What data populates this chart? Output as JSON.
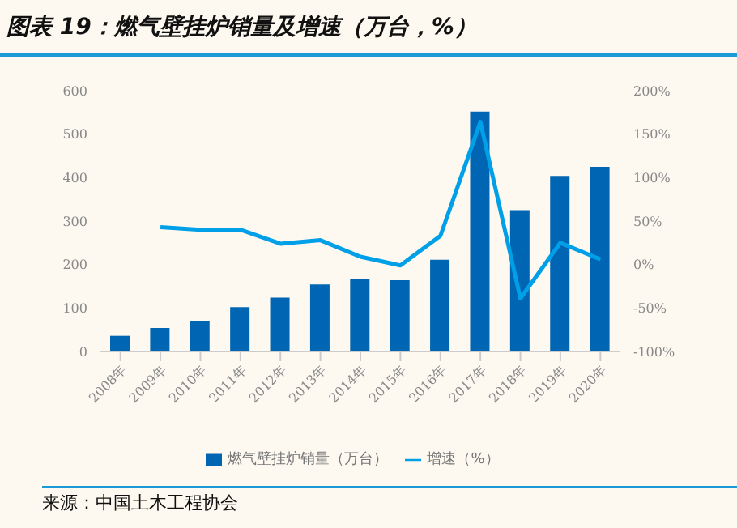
{
  "chart_data": {
    "type": "bar",
    "title": "图表 19：燃气壁挂炉销量及增速（万台，%）",
    "categories": [
      "2008年",
      "2009年",
      "2010年",
      "2011年",
      "2012年",
      "2013年",
      "2014年",
      "2015年",
      "2016年",
      "2017年",
      "2018年",
      "2019年",
      "2020年"
    ],
    "series": [
      {
        "name": "燃气壁挂炉销量（万台）",
        "color": "#0066b3",
        "values": [
          36,
          54,
          71,
          102,
          124,
          154,
          167,
          164,
          211,
          552,
          325,
          404,
          425
        ]
      },
      {
        "name": "增速（%）",
        "type": "line",
        "axis": "y2",
        "color": "#00a0e9",
        "values": [
          null,
          43,
          40,
          40,
          24,
          28,
          9,
          -1,
          33,
          164,
          -39,
          25,
          6
        ]
      }
    ],
    "ylim": [
      0,
      600
    ],
    "yticks": [
      0,
      100,
      200,
      300,
      400,
      500,
      600
    ],
    "y2lim": [
      -100,
      200
    ],
    "y2ticks": [
      {
        "value": -100,
        "label": "-100%"
      },
      {
        "value": -50,
        "label": "-50%"
      },
      {
        "value": 0,
        "label": "0%"
      },
      {
        "value": 50,
        "label": "50%"
      },
      {
        "value": 100,
        "label": "100%"
      },
      {
        "value": 150,
        "label": "150%"
      },
      {
        "value": 200,
        "label": "200%"
      }
    ],
    "legend": "bottom",
    "marker": "none",
    "annotations": [
      "来源：中国土木工程协会"
    ]
  }
}
